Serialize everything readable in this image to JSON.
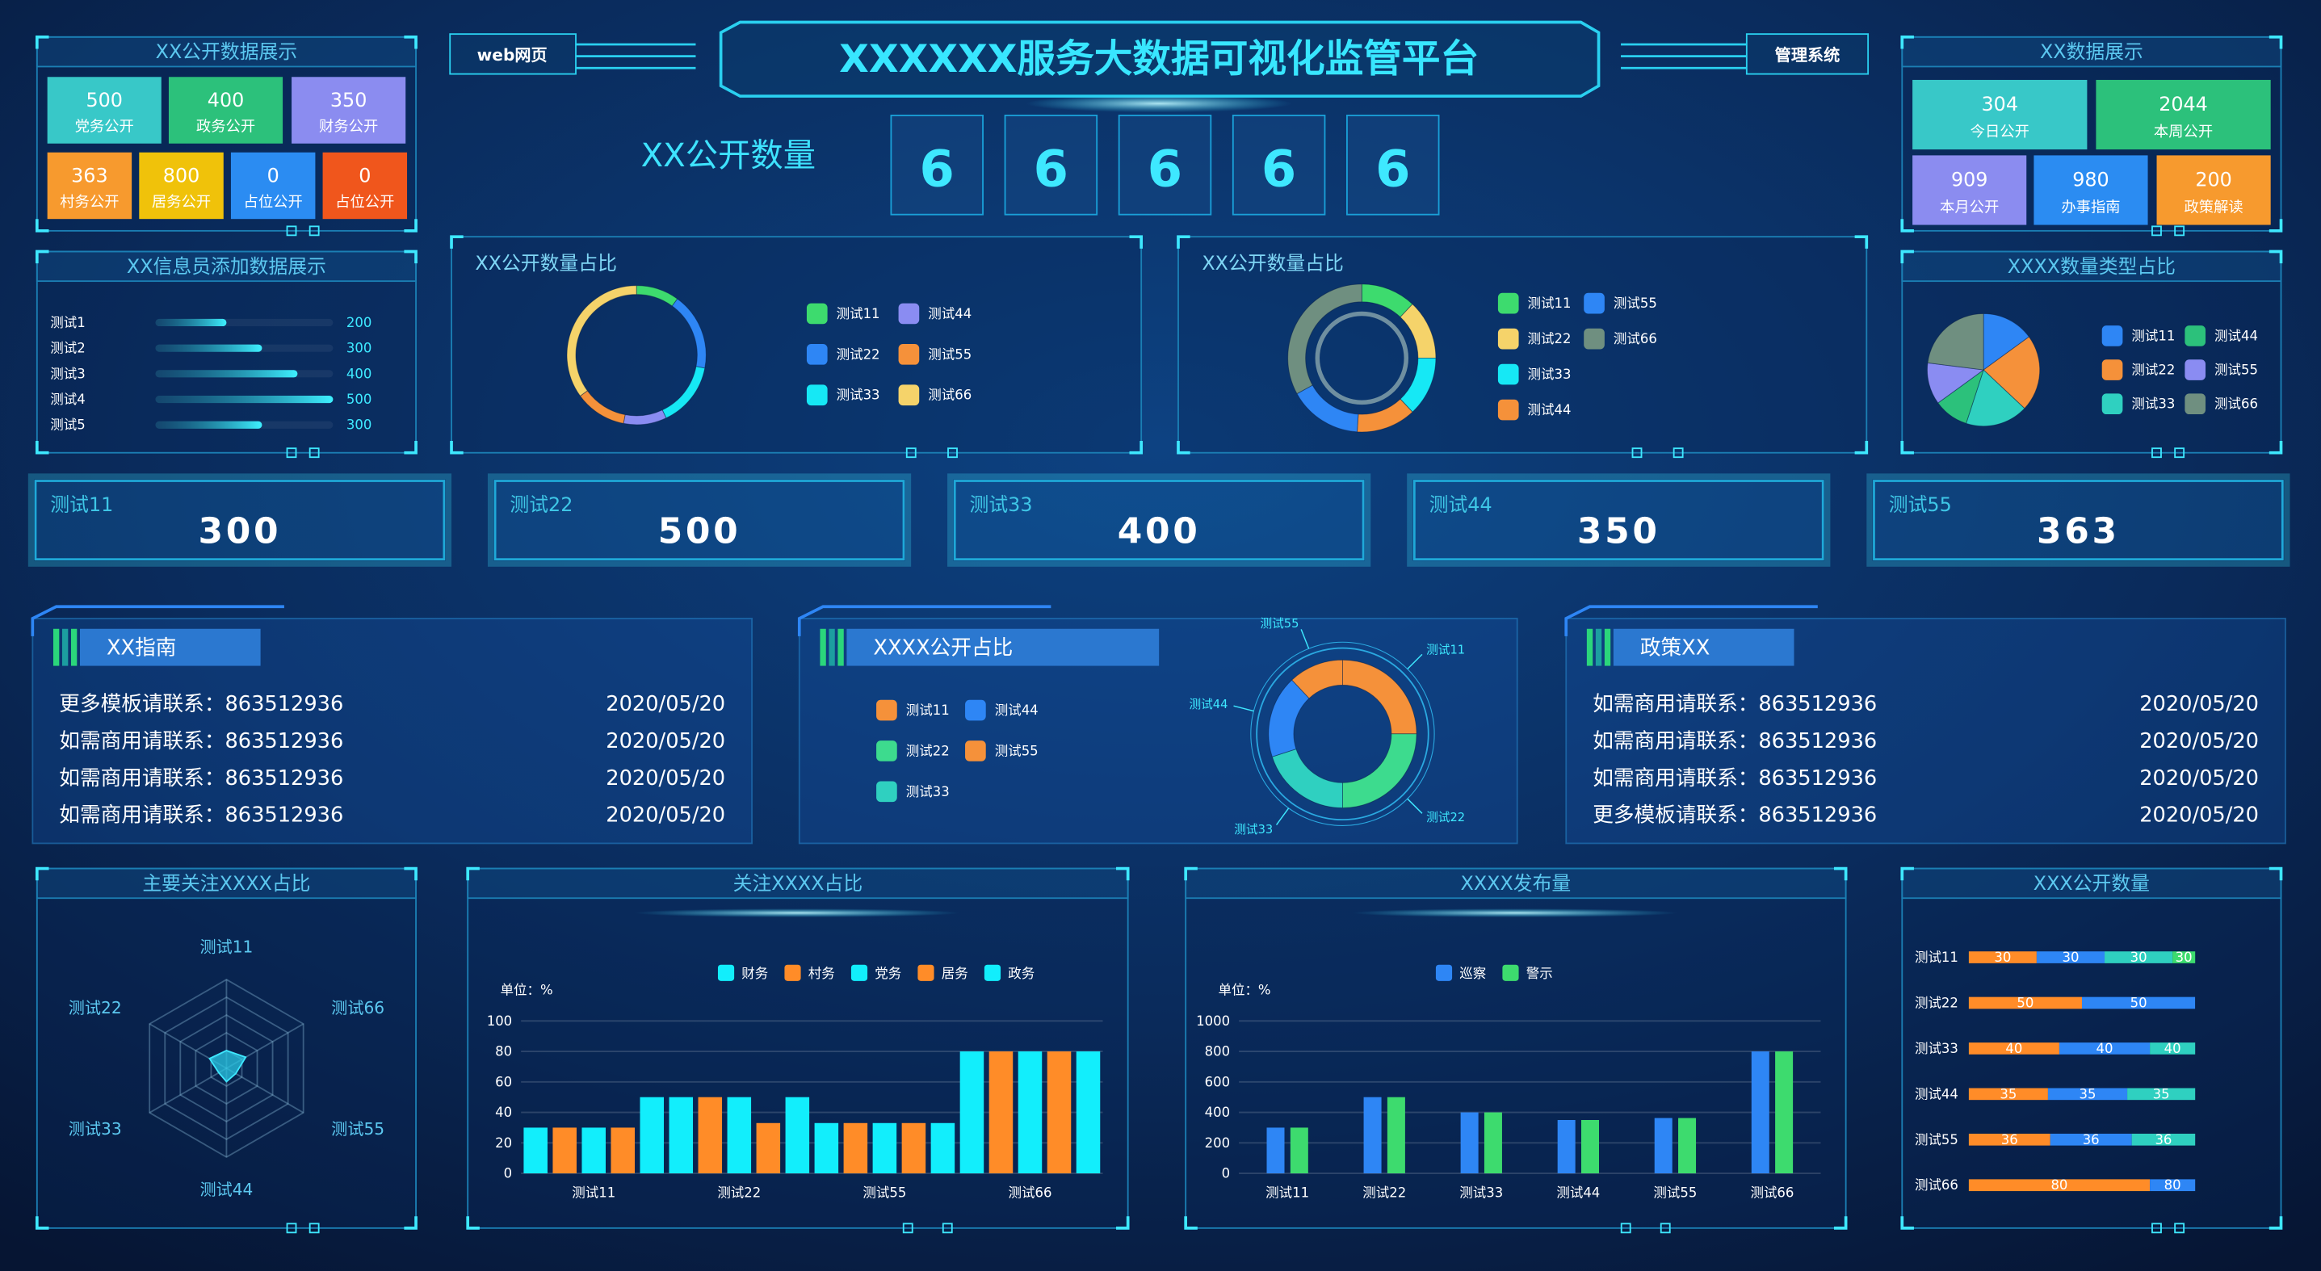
{
  "header": {
    "title": "XXXXXX服务大数据可视化监管平台",
    "left_tab": "web网页",
    "right_tab": "管理系统",
    "counter_label": "XX公开数量",
    "counter_digits": [
      6,
      6,
      6,
      6,
      6
    ]
  },
  "public_tiles": {
    "title": "XX公开数据展示",
    "tiles": [
      {
        "value": 500,
        "label": "党务公开",
        "color": "#38c8c8"
      },
      {
        "value": 400,
        "label": "政务公开",
        "color": "#2cc17b"
      },
      {
        "value": 350,
        "label": "财务公开",
        "color": "#8b8cf0"
      },
      {
        "value": 363,
        "label": "村务公开",
        "color": "#f79a2e"
      },
      {
        "value": 800,
        "label": "居务公开",
        "color": "#f0c20a"
      },
      {
        "value": 0,
        "label": "占位公开",
        "color": "#2b8cf2"
      },
      {
        "value": 0,
        "label": "占位公开",
        "color": "#f0561c"
      }
    ]
  },
  "data_tiles": {
    "title": "XX数据展示",
    "tiles": [
      {
        "value": 304,
        "label": "今日公开",
        "color": "#38c8c8"
      },
      {
        "value": 2044,
        "label": "本周公开",
        "color": "#2cc17b"
      },
      {
        "value": 909,
        "label": "本月公开",
        "color": "#8b8cf0"
      },
      {
        "value": 980,
        "label": "办事指南",
        "color": "#2b8cf2"
      },
      {
        "value": 200,
        "label": "政策解读",
        "color": "#f79a2e"
      }
    ]
  },
  "info_bars": {
    "type": "bar",
    "title": "XX信息员添加数据展示",
    "categories": [
      "测试1",
      "测试2",
      "测试3",
      "测试4",
      "测试5"
    ],
    "values": [
      200,
      300,
      400,
      500,
      300
    ]
  },
  "donut_a": {
    "type": "pie",
    "title": "XX公开数量占比",
    "categories": [
      "测试11",
      "测试22",
      "测试33",
      "测试44",
      "测试55",
      "测试66"
    ],
    "values": [
      10,
      18,
      15,
      10,
      12,
      35
    ],
    "colors": [
      "#3ddb6e",
      "#2e86f5",
      "#16e8f5",
      "#8a8cf2",
      "#f5913a",
      "#f5d36a"
    ]
  },
  "donut_b": {
    "type": "pie",
    "title": "XX公开数量占比",
    "categories": [
      "测试11",
      "测试22",
      "测试33",
      "测试44",
      "测试55",
      "测试66"
    ],
    "values": [
      12,
      13,
      13,
      13,
      16,
      33
    ],
    "colors": [
      "#3ddb6e",
      "#f5d36a",
      "#16e8f5",
      "#f5913a",
      "#2e86f5",
      "#6f8f80"
    ]
  },
  "pie_c": {
    "type": "pie",
    "title": "XXXX数量类型占比",
    "categories": [
      "测试11",
      "测试22",
      "测试33",
      "测试44",
      "测试55",
      "测试66"
    ],
    "values": [
      15,
      22,
      18,
      10,
      12,
      23
    ],
    "colors": [
      "#2e86f5",
      "#f5913a",
      "#2fd0c0",
      "#2cc17b",
      "#8a8cf2",
      "#6f8f80"
    ]
  },
  "stats": [
    {
      "label": "测试11",
      "value": 300
    },
    {
      "label": "测试22",
      "value": 500
    },
    {
      "label": "测试33",
      "value": 400
    },
    {
      "label": "测试44",
      "value": 350
    },
    {
      "label": "测试55",
      "value": 363
    }
  ],
  "guide": {
    "title": "XX指南",
    "rows": [
      {
        "text": "更多模板请联系：863512936",
        "date": "2020/05/20"
      },
      {
        "text": "如需商用请联系：863512936",
        "date": "2020/05/20"
      },
      {
        "text": "如需商用请联系：863512936",
        "date": "2020/05/20"
      },
      {
        "text": "如需商用请联系：863512936",
        "date": "2020/05/20"
      }
    ]
  },
  "donut_d": {
    "type": "pie",
    "title": "XXXX公开占比",
    "categories": [
      "测试11",
      "测试22",
      "测试33",
      "测试44",
      "测试55"
    ],
    "values": [
      25,
      25,
      20,
      18,
      12
    ],
    "colors": [
      "#f5913a",
      "#3ddb8e",
      "#2fd0c0",
      "#2e86f5",
      "#f5913a"
    ]
  },
  "policy": {
    "title": "政策XX",
    "rows": [
      {
        "text": "如需商用请联系：863512936",
        "date": "2020/05/20"
      },
      {
        "text": "如需商用请联系：863512936",
        "date": "2020/05/20"
      },
      {
        "text": "如需商用请联系：863512936",
        "date": "2020/05/20"
      },
      {
        "text": "更多模板请联系：863512936",
        "date": "2020/05/20"
      }
    ]
  },
  "radar": {
    "type": "radar",
    "title": "主要关注XXXX占比",
    "categories": [
      "测试11",
      "测试66",
      "测试55",
      "测试44",
      "测试33",
      "测试22"
    ],
    "values": [
      20,
      25,
      12,
      15,
      10,
      22
    ],
    "rlim": [
      0,
      100
    ]
  },
  "bars_focus": {
    "type": "bar",
    "title": "关注XXXX占比",
    "unit": "单位：%",
    "categories": [
      "测试11",
      "测试22",
      "测试55",
      "测试66"
    ],
    "series": [
      {
        "name": "财务",
        "color": "#12eefc",
        "values": [
          30,
          50,
          33,
          80
        ]
      },
      {
        "name": "村务",
        "color": "#ff8c28",
        "values": [
          30,
          50,
          33,
          80
        ]
      },
      {
        "name": "党务",
        "color": "#12eefc",
        "values": [
          30,
          50,
          33,
          80
        ]
      },
      {
        "name": "居务",
        "color": "#ff8c28",
        "values": [
          30,
          33,
          33,
          80
        ]
      },
      {
        "name": "政务",
        "color": "#12eefc",
        "values": [
          50,
          50,
          33,
          80
        ]
      }
    ],
    "ylim": [
      0,
      100
    ],
    "yticks": [
      0,
      20,
      40,
      60,
      80,
      100
    ],
    "grid": true
  },
  "bars_release": {
    "type": "bar",
    "title": "XXXX发布量",
    "unit": "单位：%",
    "categories": [
      "测试11",
      "测试22",
      "测试33",
      "测试44",
      "测试55",
      "测试66"
    ],
    "series": [
      {
        "name": "巡察",
        "color": "#2e86f5",
        "values": [
          300,
          500,
          400,
          350,
          363,
          800
        ]
      },
      {
        "name": "警示",
        "color": "#3ddb6e",
        "values": [
          300,
          500,
          400,
          350,
          363,
          800
        ]
      }
    ],
    "ylim": [
      0,
      1000
    ],
    "yticks": [
      0,
      200,
      400,
      600,
      800,
      1000
    ],
    "grid": true
  },
  "stack": {
    "type": "bar",
    "title": "XXX公开数量",
    "categories": [
      "测试11",
      "测试22",
      "测试33",
      "测试44",
      "测试55",
      "测试66"
    ],
    "series": [
      {
        "color": "#ff8c28",
        "values": [
          30,
          50,
          40,
          35,
          36,
          80
        ]
      },
      {
        "color": "#2e86f5",
        "values": [
          30,
          50,
          40,
          35,
          36,
          80
        ]
      },
      {
        "color": "#2fd0c0",
        "values": [
          30,
          null,
          40,
          35,
          36,
          null
        ]
      },
      {
        "color": "#3ddb6e",
        "values": [
          30,
          null,
          null,
          null,
          null,
          null
        ]
      }
    ],
    "xlim": [
      0,
      100
    ]
  }
}
